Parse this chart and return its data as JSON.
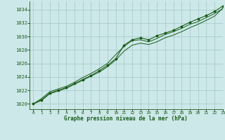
{
  "title": "Graphe pression niveau de la mer (hPa)",
  "xlim": [
    -0.5,
    23
  ],
  "ylim": [
    1019.2,
    1035.2
  ],
  "yticks": [
    1020,
    1022,
    1024,
    1026,
    1028,
    1030,
    1032,
    1034
  ],
  "xticks": [
    0,
    1,
    2,
    3,
    4,
    5,
    6,
    7,
    8,
    9,
    10,
    11,
    12,
    13,
    14,
    15,
    16,
    17,
    18,
    19,
    20,
    21,
    22,
    23
  ],
  "bg_color": "#cce8e8",
  "grid_color": "#aacccc",
  "line_color": "#1a5c1a",
  "series_main": [
    1020.0,
    1020.8,
    1021.8,
    1022.2,
    1022.6,
    1023.2,
    1023.9,
    1024.5,
    1025.2,
    1026.0,
    1027.3,
    1028.5,
    1029.4,
    1029.5,
    1029.2,
    1029.7,
    1030.3,
    1030.7,
    1031.2,
    1031.8,
    1032.2,
    1032.8,
    1033.4,
    1034.1
  ],
  "series_high": [
    1020.0,
    1020.6,
    1021.6,
    1022.0,
    1022.4,
    1023.0,
    1023.6,
    1024.2,
    1024.9,
    1025.7,
    1026.7,
    1028.7,
    1029.5,
    1029.8,
    1029.5,
    1030.1,
    1030.5,
    1030.9,
    1031.5,
    1032.1,
    1032.6,
    1033.1,
    1033.7,
    1034.5
  ],
  "series_low": [
    1020.0,
    1020.5,
    1021.5,
    1021.9,
    1022.3,
    1022.9,
    1023.5,
    1024.1,
    1024.7,
    1025.5,
    1026.5,
    1027.8,
    1028.7,
    1029.0,
    1028.8,
    1029.2,
    1029.8,
    1030.2,
    1030.7,
    1031.3,
    1031.8,
    1032.4,
    1033.0,
    1034.2
  ]
}
